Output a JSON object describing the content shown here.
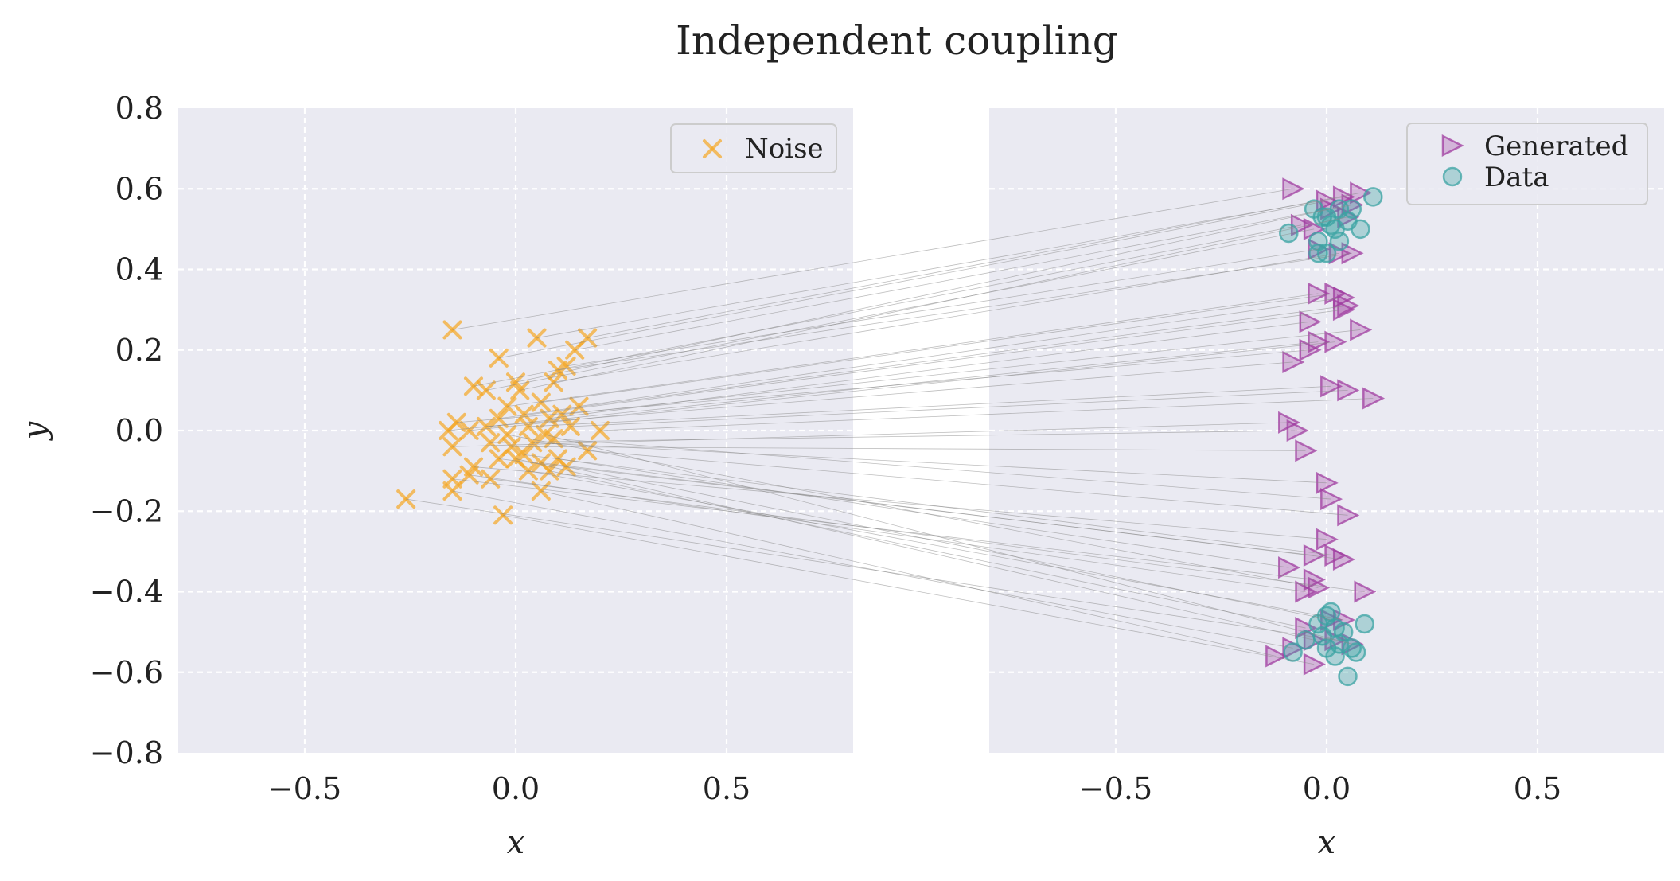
{
  "chart_data": {
    "type": "scatter",
    "title": "Independent coupling",
    "grid": true,
    "panels": [
      {
        "name": "left",
        "xlabel": "x",
        "ylabel": "y",
        "xlim": [
          -0.8,
          0.8
        ],
        "ylim": [
          -0.8,
          0.8
        ],
        "xticks": [
          -0.5,
          0.0,
          0.5
        ],
        "xtick_labels": [
          "−0.5",
          "0.0",
          "0.5"
        ],
        "yticks": [
          0.8,
          0.6,
          0.4,
          0.2,
          0.0,
          -0.2,
          -0.4,
          -0.6,
          -0.8
        ],
        "ytick_labels": [
          "0.8",
          "0.6",
          "0.4",
          "0.2",
          "0.0",
          "−0.2",
          "−0.4",
          "−0.6",
          "−0.8"
        ],
        "legend": {
          "placement": "top-right",
          "entries": [
            "Noise"
          ]
        }
      },
      {
        "name": "right",
        "xlabel": "x",
        "ylabel": "",
        "xlim": [
          -0.8,
          0.8
        ],
        "ylim": [
          -0.8,
          0.8
        ],
        "xticks": [
          -0.5,
          0.0,
          0.5
        ],
        "xtick_labels": [
          "−0.5",
          "0.0",
          "0.5"
        ],
        "legend": {
          "placement": "top-right",
          "entries": [
            "Generated",
            "Data"
          ]
        }
      }
    ],
    "series": [
      {
        "name": "Noise",
        "panel": "left",
        "marker": "x",
        "color": "#f5a623",
        "points": [
          [
            -0.15,
            0.25
          ],
          [
            -0.04,
            0.18
          ],
          [
            0.05,
            0.23
          ],
          [
            0.17,
            0.23
          ],
          [
            0.14,
            0.2
          ],
          [
            -0.1,
            0.11
          ],
          [
            -0.07,
            0.1
          ],
          [
            0.0,
            0.12
          ],
          [
            0.01,
            0.1
          ],
          [
            0.09,
            0.12
          ],
          [
            0.1,
            0.15
          ],
          [
            0.12,
            0.16
          ],
          [
            -0.02,
            0.06
          ],
          [
            0.06,
            0.07
          ],
          [
            0.15,
            0.06
          ],
          [
            -0.04,
            0.03
          ],
          [
            0.02,
            0.04
          ],
          [
            0.08,
            0.03
          ],
          [
            0.11,
            0.04
          ],
          [
            -0.16,
            0.0
          ],
          [
            -0.14,
            0.02
          ],
          [
            -0.11,
            0.0
          ],
          [
            -0.07,
            0.01
          ],
          [
            0.03,
            0.01
          ],
          [
            0.13,
            0.01
          ],
          [
            0.2,
            0.0
          ],
          [
            -0.15,
            -0.04
          ],
          [
            -0.06,
            -0.03
          ],
          [
            -0.01,
            -0.04
          ],
          [
            0.04,
            -0.03
          ],
          [
            0.09,
            -0.02
          ],
          [
            0.17,
            -0.05
          ],
          [
            -0.1,
            -0.09
          ],
          [
            -0.04,
            -0.07
          ],
          [
            0.02,
            -0.06
          ],
          [
            0.06,
            -0.08
          ],
          [
            0.1,
            -0.07
          ],
          [
            -0.15,
            -0.12
          ],
          [
            -0.11,
            -0.11
          ],
          [
            -0.06,
            -0.12
          ],
          [
            0.03,
            -0.1
          ],
          [
            0.08,
            -0.1
          ],
          [
            -0.26,
            -0.17
          ],
          [
            -0.15,
            -0.15
          ],
          [
            0.06,
            -0.15
          ],
          [
            -0.03,
            -0.21
          ],
          [
            0.07,
            -0.01
          ],
          [
            -0.02,
            -0.01
          ],
          [
            0.12,
            -0.09
          ],
          [
            0.0,
            -0.07
          ]
        ]
      },
      {
        "name": "Generated",
        "panel": "right",
        "marker": "triangle-right",
        "color": "#a03da0",
        "points": [
          [
            -0.08,
            0.6
          ],
          [
            0.0,
            0.57
          ],
          [
            0.04,
            0.58
          ],
          [
            0.08,
            0.59
          ],
          [
            0.06,
            0.56
          ],
          [
            -0.06,
            0.51
          ],
          [
            -0.03,
            0.5
          ],
          [
            0.01,
            0.55
          ],
          [
            0.05,
            0.53
          ],
          [
            0.03,
            0.44
          ],
          [
            0.06,
            0.44
          ],
          [
            -0.02,
            0.45
          ],
          [
            -0.02,
            0.34
          ],
          [
            0.02,
            0.34
          ],
          [
            0.04,
            0.33
          ],
          [
            0.04,
            0.3
          ],
          [
            0.05,
            0.31
          ],
          [
            -0.04,
            0.27
          ],
          [
            0.08,
            0.25
          ],
          [
            -0.02,
            0.22
          ],
          [
            -0.04,
            0.2
          ],
          [
            0.02,
            0.22
          ],
          [
            -0.08,
            0.17
          ],
          [
            0.01,
            0.11
          ],
          [
            0.05,
            0.1
          ],
          [
            0.11,
            0.08
          ],
          [
            -0.09,
            0.02
          ],
          [
            -0.07,
            0.0
          ],
          [
            -0.05,
            -0.05
          ],
          [
            0.0,
            -0.13
          ],
          [
            0.01,
            -0.17
          ],
          [
            0.05,
            -0.21
          ],
          [
            0.0,
            -0.27
          ],
          [
            -0.03,
            -0.31
          ],
          [
            0.02,
            -0.31
          ],
          [
            0.04,
            -0.32
          ],
          [
            -0.09,
            -0.34
          ],
          [
            -0.03,
            -0.37
          ],
          [
            -0.05,
            -0.4
          ],
          [
            0.09,
            -0.4
          ],
          [
            0.04,
            -0.47
          ],
          [
            -0.05,
            -0.49
          ],
          [
            0.02,
            -0.52
          ],
          [
            -0.08,
            -0.54
          ],
          [
            -0.12,
            -0.56
          ],
          [
            -0.03,
            -0.58
          ],
          [
            0.06,
            -0.53
          ],
          [
            -0.02,
            -0.39
          ],
          [
            0.01,
            -0.47
          ],
          [
            -0.03,
            -0.52
          ]
        ]
      },
      {
        "name": "Data",
        "panel": "right",
        "marker": "circle",
        "color": "#3ba3a3",
        "points": [
          [
            -0.03,
            0.55
          ],
          [
            0.0,
            0.53
          ],
          [
            0.02,
            0.5
          ],
          [
            0.05,
            0.52
          ],
          [
            0.08,
            0.5
          ],
          [
            0.11,
            0.58
          ],
          [
            -0.09,
            0.49
          ],
          [
            -0.02,
            0.47
          ],
          [
            0.0,
            0.44
          ],
          [
            0.03,
            0.47
          ],
          [
            -0.01,
            0.53
          ],
          [
            0.03,
            0.55
          ],
          [
            0.06,
            0.55
          ],
          [
            -0.02,
            0.44
          ],
          [
            0.01,
            0.51
          ],
          [
            0.0,
            -0.46
          ],
          [
            0.02,
            -0.49
          ],
          [
            -0.01,
            -0.51
          ],
          [
            0.04,
            -0.5
          ],
          [
            0.06,
            -0.54
          ],
          [
            0.09,
            -0.48
          ],
          [
            0.05,
            -0.61
          ],
          [
            -0.08,
            -0.55
          ],
          [
            0.0,
            -0.54
          ],
          [
            0.07,
            -0.55
          ],
          [
            -0.02,
            -0.48
          ],
          [
            0.03,
            -0.53
          ],
          [
            0.01,
            -0.45
          ],
          [
            -0.05,
            -0.52
          ],
          [
            0.02,
            -0.56
          ]
        ]
      }
    ],
    "pairing_lines": {
      "description": "Each noise point is connected to one generated point",
      "color": "#888888"
    }
  }
}
